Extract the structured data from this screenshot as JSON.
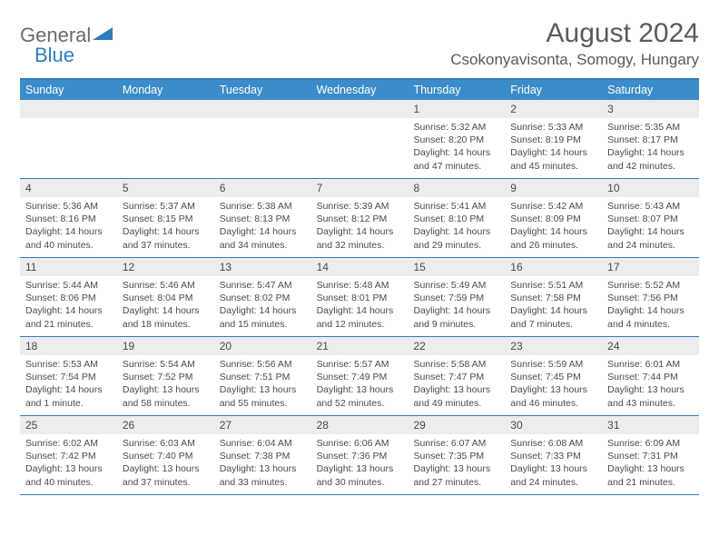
{
  "logo": {
    "general": "General",
    "blue": "Blue"
  },
  "title": "August 2024",
  "location": "Csokonyavisonta, Somogy, Hungary",
  "dow": [
    "Sunday",
    "Monday",
    "Tuesday",
    "Wednesday",
    "Thursday",
    "Friday",
    "Saturday"
  ],
  "colors": {
    "header_bar": "#3b8cc9",
    "border": "#2f7bbf",
    "daynum_bg": "#ededed",
    "text": "#4a4a4a",
    "title_text": "#5a5a5a"
  },
  "weeks": [
    [
      {
        "n": "",
        "sr": "",
        "ss": "",
        "dl": ""
      },
      {
        "n": "",
        "sr": "",
        "ss": "",
        "dl": ""
      },
      {
        "n": "",
        "sr": "",
        "ss": "",
        "dl": ""
      },
      {
        "n": "",
        "sr": "",
        "ss": "",
        "dl": ""
      },
      {
        "n": "1",
        "sr": "Sunrise: 5:32 AM",
        "ss": "Sunset: 8:20 PM",
        "dl": "Daylight: 14 hours and 47 minutes."
      },
      {
        "n": "2",
        "sr": "Sunrise: 5:33 AM",
        "ss": "Sunset: 8:19 PM",
        "dl": "Daylight: 14 hours and 45 minutes."
      },
      {
        "n": "3",
        "sr": "Sunrise: 5:35 AM",
        "ss": "Sunset: 8:17 PM",
        "dl": "Daylight: 14 hours and 42 minutes."
      }
    ],
    [
      {
        "n": "4",
        "sr": "Sunrise: 5:36 AM",
        "ss": "Sunset: 8:16 PM",
        "dl": "Daylight: 14 hours and 40 minutes."
      },
      {
        "n": "5",
        "sr": "Sunrise: 5:37 AM",
        "ss": "Sunset: 8:15 PM",
        "dl": "Daylight: 14 hours and 37 minutes."
      },
      {
        "n": "6",
        "sr": "Sunrise: 5:38 AM",
        "ss": "Sunset: 8:13 PM",
        "dl": "Daylight: 14 hours and 34 minutes."
      },
      {
        "n": "7",
        "sr": "Sunrise: 5:39 AM",
        "ss": "Sunset: 8:12 PM",
        "dl": "Daylight: 14 hours and 32 minutes."
      },
      {
        "n": "8",
        "sr": "Sunrise: 5:41 AM",
        "ss": "Sunset: 8:10 PM",
        "dl": "Daylight: 14 hours and 29 minutes."
      },
      {
        "n": "9",
        "sr": "Sunrise: 5:42 AM",
        "ss": "Sunset: 8:09 PM",
        "dl": "Daylight: 14 hours and 26 minutes."
      },
      {
        "n": "10",
        "sr": "Sunrise: 5:43 AM",
        "ss": "Sunset: 8:07 PM",
        "dl": "Daylight: 14 hours and 24 minutes."
      }
    ],
    [
      {
        "n": "11",
        "sr": "Sunrise: 5:44 AM",
        "ss": "Sunset: 8:06 PM",
        "dl": "Daylight: 14 hours and 21 minutes."
      },
      {
        "n": "12",
        "sr": "Sunrise: 5:46 AM",
        "ss": "Sunset: 8:04 PM",
        "dl": "Daylight: 14 hours and 18 minutes."
      },
      {
        "n": "13",
        "sr": "Sunrise: 5:47 AM",
        "ss": "Sunset: 8:02 PM",
        "dl": "Daylight: 14 hours and 15 minutes."
      },
      {
        "n": "14",
        "sr": "Sunrise: 5:48 AM",
        "ss": "Sunset: 8:01 PM",
        "dl": "Daylight: 14 hours and 12 minutes."
      },
      {
        "n": "15",
        "sr": "Sunrise: 5:49 AM",
        "ss": "Sunset: 7:59 PM",
        "dl": "Daylight: 14 hours and 9 minutes."
      },
      {
        "n": "16",
        "sr": "Sunrise: 5:51 AM",
        "ss": "Sunset: 7:58 PM",
        "dl": "Daylight: 14 hours and 7 minutes."
      },
      {
        "n": "17",
        "sr": "Sunrise: 5:52 AM",
        "ss": "Sunset: 7:56 PM",
        "dl": "Daylight: 14 hours and 4 minutes."
      }
    ],
    [
      {
        "n": "18",
        "sr": "Sunrise: 5:53 AM",
        "ss": "Sunset: 7:54 PM",
        "dl": "Daylight: 14 hours and 1 minute."
      },
      {
        "n": "19",
        "sr": "Sunrise: 5:54 AM",
        "ss": "Sunset: 7:52 PM",
        "dl": "Daylight: 13 hours and 58 minutes."
      },
      {
        "n": "20",
        "sr": "Sunrise: 5:56 AM",
        "ss": "Sunset: 7:51 PM",
        "dl": "Daylight: 13 hours and 55 minutes."
      },
      {
        "n": "21",
        "sr": "Sunrise: 5:57 AM",
        "ss": "Sunset: 7:49 PM",
        "dl": "Daylight: 13 hours and 52 minutes."
      },
      {
        "n": "22",
        "sr": "Sunrise: 5:58 AM",
        "ss": "Sunset: 7:47 PM",
        "dl": "Daylight: 13 hours and 49 minutes."
      },
      {
        "n": "23",
        "sr": "Sunrise: 5:59 AM",
        "ss": "Sunset: 7:45 PM",
        "dl": "Daylight: 13 hours and 46 minutes."
      },
      {
        "n": "24",
        "sr": "Sunrise: 6:01 AM",
        "ss": "Sunset: 7:44 PM",
        "dl": "Daylight: 13 hours and 43 minutes."
      }
    ],
    [
      {
        "n": "25",
        "sr": "Sunrise: 6:02 AM",
        "ss": "Sunset: 7:42 PM",
        "dl": "Daylight: 13 hours and 40 minutes."
      },
      {
        "n": "26",
        "sr": "Sunrise: 6:03 AM",
        "ss": "Sunset: 7:40 PM",
        "dl": "Daylight: 13 hours and 37 minutes."
      },
      {
        "n": "27",
        "sr": "Sunrise: 6:04 AM",
        "ss": "Sunset: 7:38 PM",
        "dl": "Daylight: 13 hours and 33 minutes."
      },
      {
        "n": "28",
        "sr": "Sunrise: 6:06 AM",
        "ss": "Sunset: 7:36 PM",
        "dl": "Daylight: 13 hours and 30 minutes."
      },
      {
        "n": "29",
        "sr": "Sunrise: 6:07 AM",
        "ss": "Sunset: 7:35 PM",
        "dl": "Daylight: 13 hours and 27 minutes."
      },
      {
        "n": "30",
        "sr": "Sunrise: 6:08 AM",
        "ss": "Sunset: 7:33 PM",
        "dl": "Daylight: 13 hours and 24 minutes."
      },
      {
        "n": "31",
        "sr": "Sunrise: 6:09 AM",
        "ss": "Sunset: 7:31 PM",
        "dl": "Daylight: 13 hours and 21 minutes."
      }
    ]
  ]
}
